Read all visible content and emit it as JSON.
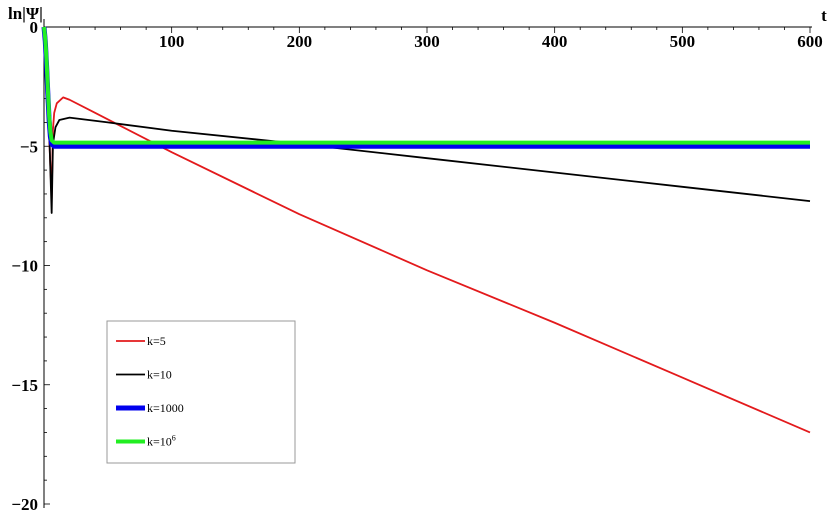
{
  "chart_data": {
    "type": "line",
    "xlabel": "t",
    "ylabel": "ln|Ψ|",
    "xlim": [
      0,
      600
    ],
    "ylim": [
      -20,
      0
    ],
    "xticks": [
      100,
      200,
      300,
      400,
      500,
      600
    ],
    "yticks": [
      0,
      -5,
      -10,
      -15,
      -20
    ],
    "grid": false,
    "legend_position": "bottom-left",
    "series": [
      {
        "name": "k=5",
        "color": "#e31a1c",
        "stroke_width": 1.8,
        "points": [
          [
            0,
            0
          ],
          [
            2,
            -3
          ],
          [
            4,
            -4.5
          ],
          [
            6,
            -7.2
          ],
          [
            7,
            -4.3
          ],
          [
            8,
            -3.6
          ],
          [
            10,
            -3.2
          ],
          [
            15,
            -2.95
          ],
          [
            20,
            -3.05
          ],
          [
            40,
            -3.6
          ],
          [
            100,
            -5.25
          ],
          [
            200,
            -7.85
          ],
          [
            300,
            -10.2
          ],
          [
            400,
            -12.4
          ],
          [
            500,
            -14.7
          ],
          [
            600,
            -17.0
          ]
        ]
      },
      {
        "name": "k=10",
        "color": "#000000",
        "stroke_width": 1.8,
        "points": [
          [
            0,
            0
          ],
          [
            2,
            -2.5
          ],
          [
            4,
            -4.2
          ],
          [
            6,
            -7.8
          ],
          [
            7,
            -4.9
          ],
          [
            9,
            -4.2
          ],
          [
            12,
            -3.9
          ],
          [
            20,
            -3.8
          ],
          [
            50,
            -4.0
          ],
          [
            100,
            -4.35
          ],
          [
            200,
            -4.9
          ],
          [
            300,
            -5.5
          ],
          [
            400,
            -6.1
          ],
          [
            500,
            -6.7
          ],
          [
            600,
            -7.3
          ]
        ]
      },
      {
        "name": "k=1000",
        "color": "#0000ee",
        "stroke_width": 5,
        "points": [
          [
            0,
            0
          ],
          [
            1,
            -0.6
          ],
          [
            2,
            -1.6
          ],
          [
            3,
            -2.8
          ],
          [
            4,
            -3.9
          ],
          [
            5,
            -4.6
          ],
          [
            6,
            -4.9
          ],
          [
            8,
            -5.0
          ],
          [
            600,
            -5.0
          ]
        ]
      },
      {
        "name": "k=10^6",
        "color": "#22ee22",
        "stroke_width": 4,
        "points": [
          [
            0,
            0
          ],
          [
            1,
            -0.5
          ],
          [
            2,
            -1.4
          ],
          [
            3,
            -2.6
          ],
          [
            4,
            -3.7
          ],
          [
            5,
            -4.4
          ],
          [
            6,
            -4.75
          ],
          [
            8,
            -4.85
          ],
          [
            600,
            -4.85
          ]
        ]
      }
    ]
  },
  "legend": {
    "items": [
      {
        "label": "k=5",
        "sup": ""
      },
      {
        "label": "k=10",
        "sup": ""
      },
      {
        "label": "k=1000",
        "sup": ""
      },
      {
        "label": "k=10",
        "sup": "6"
      }
    ]
  }
}
